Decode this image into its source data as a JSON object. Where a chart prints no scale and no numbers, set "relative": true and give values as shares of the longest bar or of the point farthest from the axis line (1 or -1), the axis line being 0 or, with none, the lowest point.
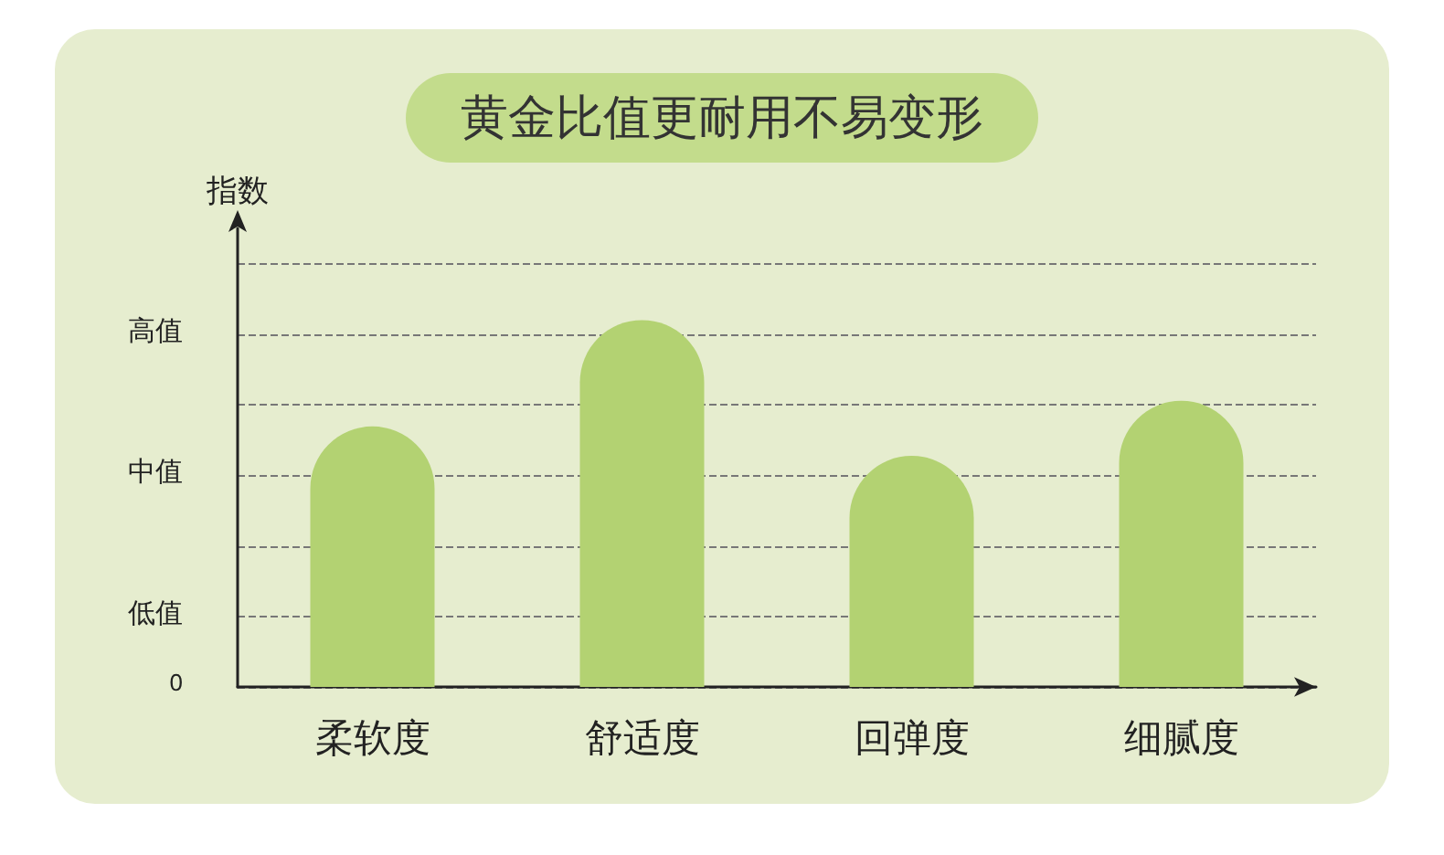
{
  "chart_data": {
    "type": "bar",
    "title": "黄金比值更耐用不易变形",
    "ylabel": "指数",
    "categories": [
      "柔软度",
      "舒适度",
      "回弹度",
      "细腻度"
    ],
    "values": [
      0.71,
      1,
      0.63,
      0.78
    ],
    "color": "#b3d272",
    "relative": true,
    "annotations": [
      "0",
      "低值",
      "中值",
      "高值"
    ],
    "grid": "y"
  }
}
